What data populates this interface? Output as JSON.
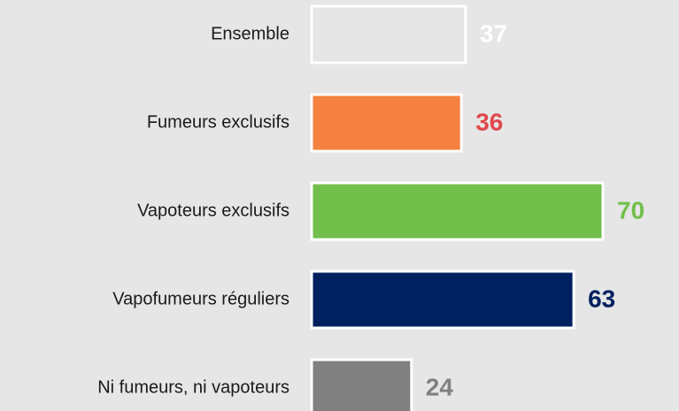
{
  "chart_data": {
    "type": "bar",
    "orientation": "horizontal",
    "categories": [
      "Ensemble",
      "Fumeurs exclusifs",
      "Vapoteurs exclusifs",
      "Vapofumeurs réguliers",
      "Ni fumeurs, ni vapoteurs"
    ],
    "values": [
      37,
      36,
      70,
      63,
      24
    ],
    "colors": [
      "#e6e6e6",
      "#f4813f",
      "#72bf4b",
      "#002060",
      "#808080"
    ],
    "label_colors": [
      "#ffffff",
      "#e0474c",
      "#72bf4b",
      "#002060",
      "#808080"
    ]
  }
}
